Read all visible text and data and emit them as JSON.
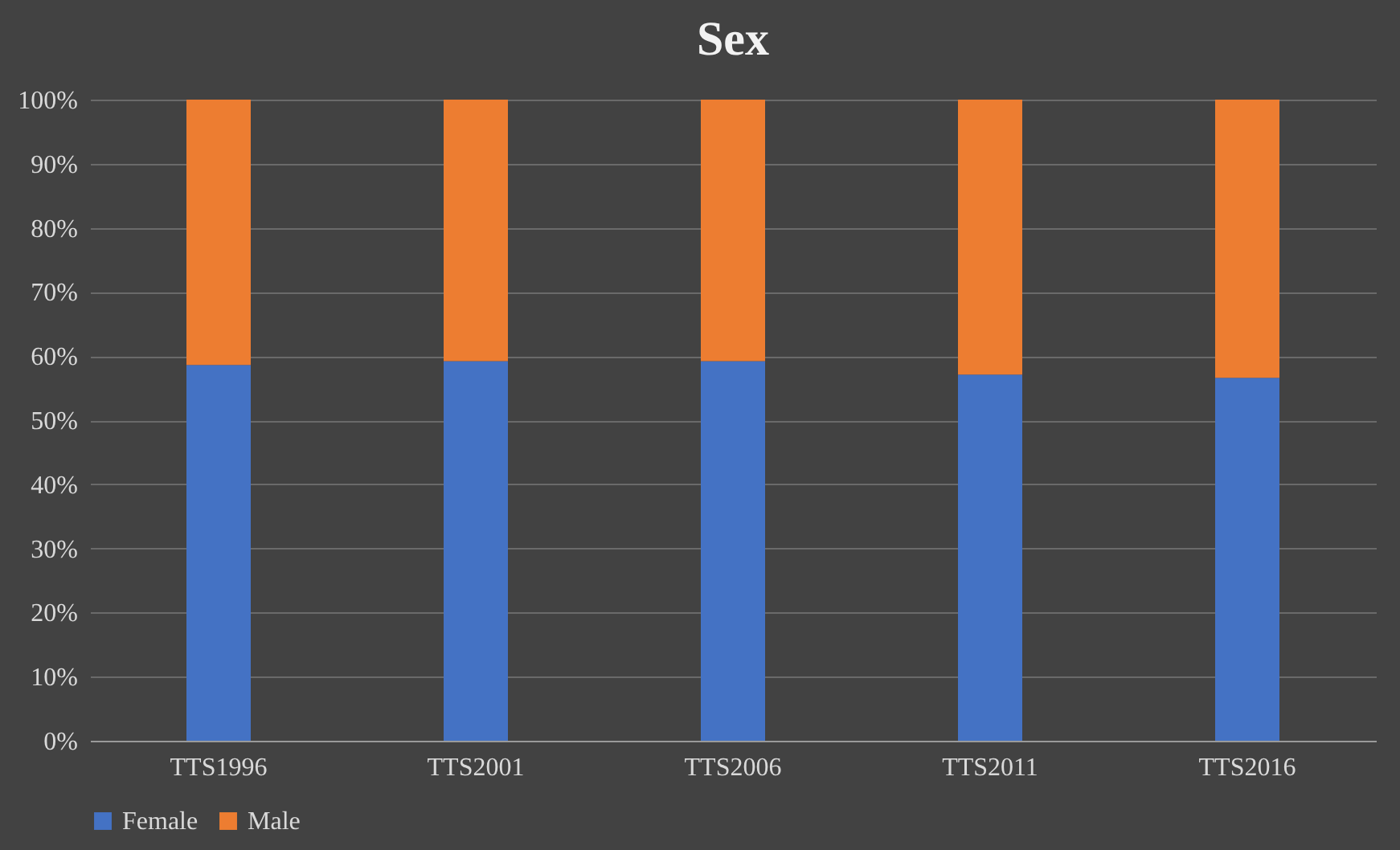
{
  "chart_data": {
    "type": "bar",
    "title": "Sex",
    "categories": [
      "TTS1996",
      "TTS2001",
      "TTS2006",
      "TTS2011",
      "TTS2016"
    ],
    "stacked": true,
    "series": [
      {
        "name": "Female",
        "color": "#4472c4",
        "values": [
          58.6,
          59.2,
          59.2,
          57.1,
          56.6
        ]
      },
      {
        "name": "Male",
        "color": "#ed7d31",
        "values": [
          41.4,
          40.8,
          40.8,
          42.9,
          43.4
        ]
      }
    ],
    "ylim": [
      0,
      100
    ],
    "yticks": [
      {
        "value": 0,
        "label": "0%"
      },
      {
        "value": 10,
        "label": "10%"
      },
      {
        "value": 20,
        "label": "20%"
      },
      {
        "value": 30,
        "label": "30%"
      },
      {
        "value": 40,
        "label": "40%"
      },
      {
        "value": 50,
        "label": "50%"
      },
      {
        "value": 60,
        "label": "60%"
      },
      {
        "value": 70,
        "label": "70%"
      },
      {
        "value": 80,
        "label": "80%"
      },
      {
        "value": 90,
        "label": "90%"
      },
      {
        "value": 100,
        "label": "100%"
      }
    ],
    "grid": "y",
    "legend": "bottom"
  }
}
